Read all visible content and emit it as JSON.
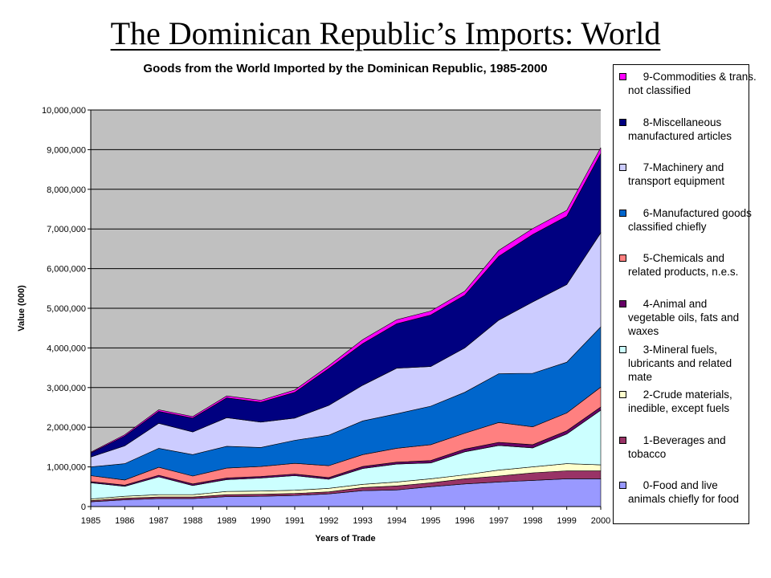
{
  "slide_title": "The Dominican Republic’s Imports: World",
  "chart_data": {
    "type": "area",
    "stacked": true,
    "title": "Goods from the World Imported by the Dominican Republic, 1985-2000",
    "xlabel": "Years of Trade",
    "ylabel": "Value (000)",
    "ylim": [
      0,
      10000000
    ],
    "y_ticks": [
      "0",
      "1,000,000",
      "2,000,000",
      "3,000,000",
      "4,000,000",
      "5,000,000",
      "6,000,000",
      "7,000,000",
      "8,000,000",
      "9,000,000",
      "10,000,000"
    ],
    "x": [
      "1985",
      "1986",
      "1987",
      "1988",
      "1989",
      "1990",
      "1991",
      "1992",
      "1993",
      "1994",
      "1995",
      "1996",
      "1997",
      "1998",
      "1999",
      "2000"
    ],
    "grid": true,
    "plot_background": "#c0c0c0",
    "legend_position": "right",
    "series": [
      {
        "name": "0-Food and live animals chiefly for food",
        "color": "#9999ff",
        "values": [
          120000,
          170000,
          200000,
          200000,
          250000,
          260000,
          280000,
          320000,
          400000,
          420000,
          500000,
          570000,
          620000,
          660000,
          700000,
          700000
        ]
      },
      {
        "name": "1-Beverages and tobacco",
        "color": "#993366",
        "values": [
          30000,
          40000,
          40000,
          40000,
          50000,
          50000,
          50000,
          50000,
          80000,
          100000,
          100000,
          130000,
          150000,
          190000,
          200000,
          200000
        ]
      },
      {
        "name": "2-Crude materials, inedible, except fuels",
        "color": "#ffffcc",
        "values": [
          40000,
          50000,
          60000,
          60000,
          80000,
          80000,
          80000,
          90000,
          80000,
          100000,
          100000,
          100000,
          150000,
          150000,
          180000,
          150000
        ]
      },
      {
        "name": "3-Mineral fuels, lubricants and related mate",
        "color": "#ccffff",
        "values": [
          410000,
          250000,
          450000,
          230000,
          300000,
          330000,
          370000,
          230000,
          400000,
          450000,
          400000,
          580000,
          620000,
          480000,
          750000,
          1380000
        ]
      },
      {
        "name": "4-Animal and vegetable oils, fats and waxes",
        "color": "#660066",
        "values": [
          30000,
          30000,
          40000,
          40000,
          40000,
          40000,
          40000,
          40000,
          50000,
          50000,
          60000,
          70000,
          80000,
          80000,
          80000,
          80000
        ]
      },
      {
        "name": "5-Chemicals and related products, n.e.s.",
        "color": "#ff8080",
        "values": [
          150000,
          130000,
          200000,
          200000,
          250000,
          250000,
          270000,
          300000,
          300000,
          350000,
          400000,
          400000,
          500000,
          450000,
          450000,
          500000
        ]
      },
      {
        "name": "6-Manufactured goods classified chiefly",
        "color": "#0066cc",
        "values": [
          220000,
          410000,
          480000,
          540000,
          550000,
          480000,
          580000,
          770000,
          850000,
          870000,
          970000,
          1030000,
          1230000,
          1350000,
          1280000,
          1520000
        ]
      },
      {
        "name": "7-Machinery and transport equipment",
        "color": "#ccccff",
        "values": [
          250000,
          450000,
          630000,
          570000,
          720000,
          640000,
          560000,
          750000,
          900000,
          1150000,
          1000000,
          1120000,
          1350000,
          1800000,
          1960000,
          2370000
        ]
      },
      {
        "name": "8-Miscellaneous manufactured articles",
        "color": "#000080",
        "values": [
          100000,
          250000,
          300000,
          350000,
          500000,
          500000,
          650000,
          930000,
          1050000,
          1120000,
          1300000,
          1330000,
          1610000,
          1700000,
          1720000,
          2000000
        ]
      },
      {
        "name": "9-Commodities & trans. not classified",
        "color": "#ff00ff",
        "values": [
          20000,
          30000,
          40000,
          40000,
          50000,
          50000,
          60000,
          70000,
          100000,
          100000,
          100000,
          100000,
          150000,
          150000,
          150000,
          150000
        ]
      }
    ]
  }
}
